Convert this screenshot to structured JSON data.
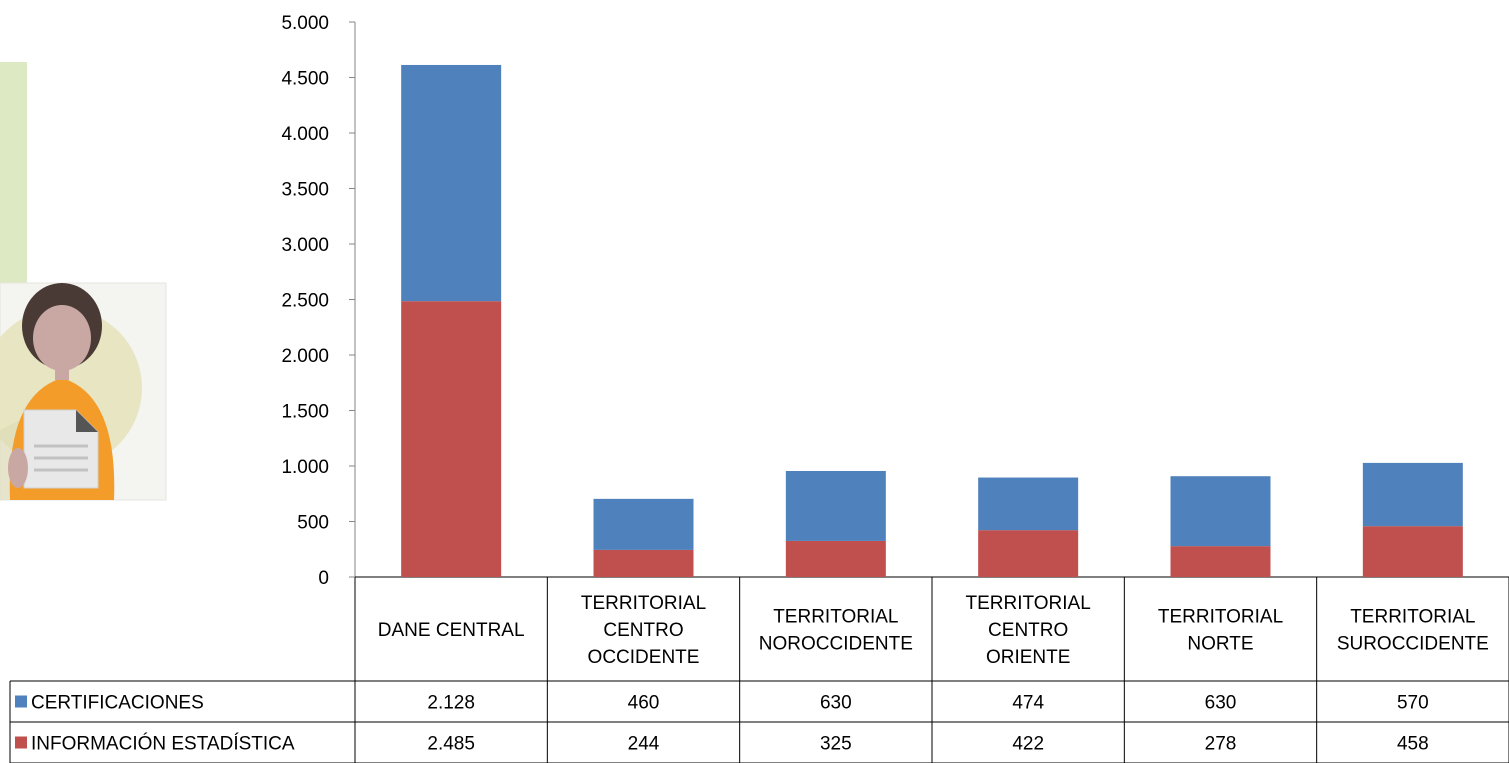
{
  "chart_data": {
    "type": "bar",
    "stacked": true,
    "categories": [
      [
        "DANE CENTRAL"
      ],
      [
        "TERRITORIAL",
        "CENTRO",
        "OCCIDENTE"
      ],
      [
        "TERRITORIAL",
        "NOROCCIDENTE"
      ],
      [
        "TERRITORIAL",
        "CENTRO",
        "ORIENTE"
      ],
      [
        "TERRITORIAL",
        "NORTE"
      ],
      [
        "TERRITORIAL",
        "SUROCCIDENTE"
      ]
    ],
    "series": [
      {
        "name": "CERTIFICACIONES",
        "color": "#4f81bd",
        "values": [
          2128,
          460,
          630,
          474,
          630,
          570
        ],
        "labels": [
          "2.128",
          "460",
          "630",
          "474",
          "630",
          "570"
        ]
      },
      {
        "name": "INFORMACIÓN ESTADÍSTICA",
        "color": "#c0504d",
        "values": [
          2485,
          244,
          325,
          422,
          278,
          458
        ],
        "labels": [
          "2.485",
          "244",
          "325",
          "422",
          "278",
          "458"
        ]
      }
    ],
    "stack_order_bottom_to_top": [
      "INFORMACIÓN ESTADÍSTICA",
      "CERTIFICACIONES"
    ],
    "ylim": [
      0,
      5000
    ],
    "yticks": [
      0,
      500,
      1000,
      1500,
      2000,
      2500,
      3000,
      3500,
      4000,
      4500,
      5000
    ],
    "ytick_labels": [
      "0",
      "500",
      "1.000",
      "1.500",
      "2.000",
      "2.500",
      "3.000",
      "3.500",
      "4.000",
      "4.500",
      "5.000"
    ],
    "grid": false,
    "legend": "data-table",
    "title": "",
    "xlabel": "",
    "ylabel": ""
  },
  "illustration": {
    "icon": "person-with-document-icon",
    "colors": {
      "panel": "#dde9c3",
      "circle": "#e8e6c2",
      "shirt": "#f39c2a",
      "hair": "#4a3a36",
      "skin": "#c9a8a3",
      "paper": "#e8e8e8"
    }
  }
}
